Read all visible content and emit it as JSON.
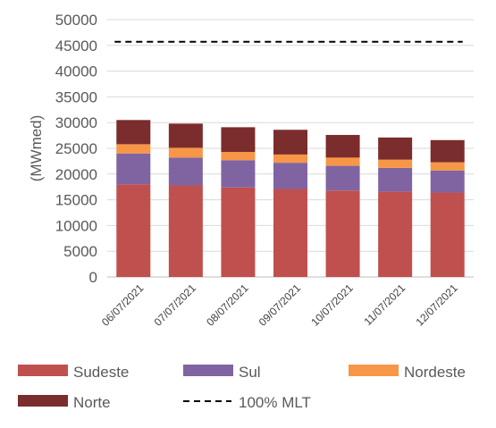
{
  "chart_data": {
    "type": "bar",
    "stacked": true,
    "categories": [
      "06/07/2021",
      "07/07/2021",
      "08/07/2021",
      "09/07/2021",
      "10/07/2021",
      "11/07/2021",
      "12/07/2021"
    ],
    "series": [
      {
        "name": "Sudeste",
        "color": "#c0504d",
        "values": [
          18000,
          17800,
          17400,
          17100,
          16800,
          16600,
          16400
        ]
      },
      {
        "name": "Sul",
        "color": "#8064a2",
        "values": [
          6000,
          5400,
          5300,
          5100,
          4800,
          4600,
          4300
        ]
      },
      {
        "name": "Nordeste",
        "color": "#f79646",
        "values": [
          1800,
          1900,
          1600,
          1600,
          1600,
          1600,
          1600
        ]
      },
      {
        "name": "Norte",
        "color": "#7b2c2c",
        "values": [
          4700,
          4700,
          4800,
          4800,
          4400,
          4300,
          4300
        ]
      }
    ],
    "reference_line": {
      "name": "100% MLT",
      "value": 45700,
      "style": "dashed",
      "color": "#000000"
    },
    "title": "",
    "xlabel": "",
    "ylabel": "(MWmed)",
    "ylim": [
      0,
      50000
    ],
    "yticks": [
      0,
      5000,
      10000,
      15000,
      20000,
      25000,
      30000,
      35000,
      40000,
      45000,
      50000
    ],
    "grid": true,
    "legend_position": "bottom"
  }
}
